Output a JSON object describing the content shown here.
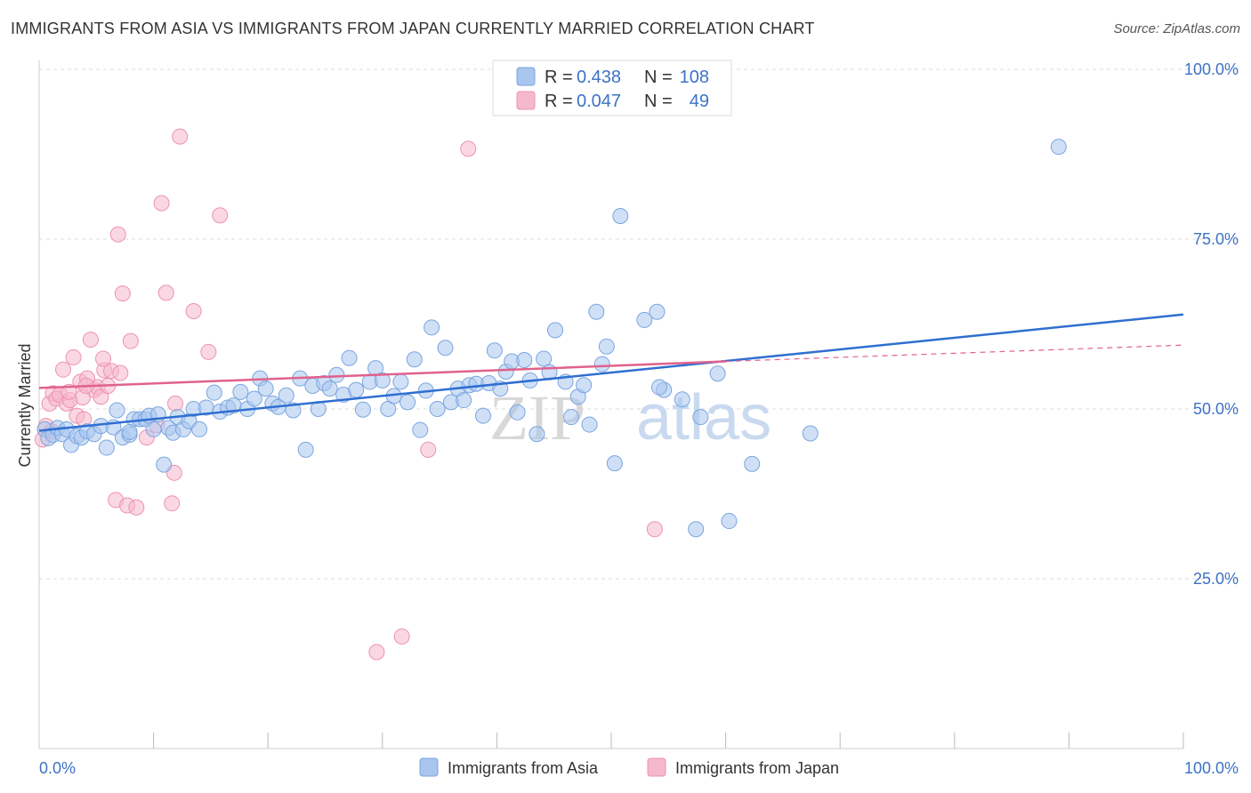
{
  "title": "IMMIGRANTS FROM ASIA VS IMMIGRANTS FROM JAPAN CURRENTLY MARRIED CORRELATION CHART",
  "source": "Source: ZipAtlas.com",
  "watermark": {
    "zip": "ZIP",
    "atlas": "atlas"
  },
  "colors": {
    "asia_fill": "#a8c6ee",
    "asia_stroke": "#7ba5e0",
    "asia_line": "#2f6fd1",
    "japan_fill": "#f6b8cc",
    "japan_stroke": "#ee92b0",
    "japan_line": "#e0628c",
    "grid": "#dddddd",
    "tick": "#3d72c4"
  },
  "legend": {
    "asia": {
      "r_label": "R =",
      "r_value": "0.438",
      "n_label": "N =",
      "n_value": "108"
    },
    "japan": {
      "r_label": "R =",
      "r_value": "0.047",
      "n_label": "N =",
      "n_value": "49"
    }
  },
  "chart_data": {
    "type": "scatter",
    "title": "IMMIGRANTS FROM ASIA VS IMMIGRANTS FROM JAPAN CURRENTLY MARRIED CORRELATION CHART",
    "xlabel": "",
    "ylabel": "Currently Married",
    "xlim": [
      0,
      100
    ],
    "ylim": [
      0,
      100
    ],
    "x_tick_labels": [
      "0.0%",
      "100.0%"
    ],
    "y_ticks": [
      {
        "value": 100,
        "label": "100.0%"
      },
      {
        "value": 75,
        "label": "75.0%"
      },
      {
        "value": 50,
        "label": "50.0%"
      },
      {
        "value": 25,
        "label": "25.0%"
      }
    ],
    "grid": "horizontal dashed",
    "legend_position": "top-center",
    "series": [
      {
        "name": "Immigrants from Asia",
        "trend": {
          "x0": 0,
          "y0": 46.8,
          "x1": 100,
          "y1": 63.9
        },
        "points": [
          [
            0.5,
            47
          ],
          [
            0.8,
            45.7
          ],
          [
            1.2,
            46.2
          ],
          [
            1.6,
            47.2
          ],
          [
            2,
            46.3
          ],
          [
            2.4,
            47
          ],
          [
            2.8,
            44.7
          ],
          [
            3.3,
            46
          ],
          [
            3.7,
            45.8
          ],
          [
            4.2,
            46.7
          ],
          [
            4.8,
            46.3
          ],
          [
            5.4,
            47.5
          ],
          [
            5.9,
            44.3
          ],
          [
            6.5,
            47.3
          ],
          [
            6.8,
            49.8
          ],
          [
            7.3,
            45.8
          ],
          [
            7.9,
            46.2
          ],
          [
            8.3,
            48.5
          ],
          [
            8.8,
            48.5
          ],
          [
            9.3,
            48.5
          ],
          [
            9.6,
            49
          ],
          [
            10,
            47
          ],
          [
            10.4,
            49.2
          ],
          [
            10.9,
            41.8
          ],
          [
            11.3,
            47.2
          ],
          [
            11.7,
            46.5
          ],
          [
            12.1,
            48.8
          ],
          [
            12.6,
            47
          ],
          [
            13.1,
            48.2
          ],
          [
            13.5,
            50
          ],
          [
            14,
            47
          ],
          [
            14.6,
            50.2
          ],
          [
            15.3,
            52.4
          ],
          [
            15.8,
            49.6
          ],
          [
            16.5,
            50.2
          ],
          [
            17,
            50.5
          ],
          [
            17.6,
            52.5
          ],
          [
            18.2,
            50
          ],
          [
            18.8,
            51.5
          ],
          [
            19.3,
            54.5
          ],
          [
            19.8,
            53
          ],
          [
            20.4,
            50.8
          ],
          [
            20.9,
            50.3
          ],
          [
            21.6,
            52
          ],
          [
            22.2,
            49.8
          ],
          [
            22.8,
            54.5
          ],
          [
            23.3,
            44
          ],
          [
            23.9,
            53.4
          ],
          [
            24.4,
            50
          ],
          [
            24.9,
            53.8
          ],
          [
            25.4,
            53
          ],
          [
            26,
            55
          ],
          [
            26.6,
            52.1
          ],
          [
            27.1,
            57.5
          ],
          [
            27.7,
            52.8
          ],
          [
            28.3,
            49.9
          ],
          [
            28.9,
            54
          ],
          [
            29.4,
            56
          ],
          [
            30,
            54.2
          ],
          [
            30.5,
            50
          ],
          [
            31,
            51.9
          ],
          [
            31.6,
            54
          ],
          [
            32.2,
            51
          ],
          [
            32.8,
            57.3
          ],
          [
            33.3,
            46.9
          ],
          [
            33.8,
            52.7
          ],
          [
            34.3,
            62
          ],
          [
            34.8,
            50
          ],
          [
            35.5,
            59
          ],
          [
            36,
            51
          ],
          [
            36.6,
            53
          ],
          [
            37.1,
            51.3
          ],
          [
            37.6,
            53.5
          ],
          [
            38.2,
            53.7
          ],
          [
            38.8,
            49
          ],
          [
            39.3,
            53.8
          ],
          [
            39.8,
            58.6
          ],
          [
            40.3,
            53
          ],
          [
            40.8,
            55.5
          ],
          [
            41.3,
            57
          ],
          [
            41.8,
            49.5
          ],
          [
            42.4,
            57.2
          ],
          [
            42.9,
            54.2
          ],
          [
            43.5,
            46.3
          ],
          [
            44.1,
            57.4
          ],
          [
            44.6,
            55.4
          ],
          [
            45.1,
            61.6
          ],
          [
            46,
            54
          ],
          [
            46.5,
            48.8
          ],
          [
            47.1,
            51.8
          ],
          [
            47.6,
            53.5
          ],
          [
            48.1,
            47.7
          ],
          [
            48.7,
            64.3
          ],
          [
            49.2,
            56.6
          ],
          [
            49.6,
            59.2
          ],
          [
            50.3,
            42
          ],
          [
            50.8,
            78.4
          ],
          [
            52.9,
            63.1
          ],
          [
            54,
            64.3
          ],
          [
            54.6,
            52.8
          ],
          [
            54.2,
            53.2
          ],
          [
            56.2,
            51.4
          ],
          [
            57.4,
            32.3
          ],
          [
            57.8,
            48.8
          ],
          [
            59.3,
            55.2
          ],
          [
            60.3,
            33.5
          ],
          [
            62.3,
            41.9
          ],
          [
            67.4,
            46.4
          ],
          [
            89.1,
            88.6
          ],
          [
            7.9,
            46.6
          ]
        ]
      },
      {
        "name": "Immigrants from Japan",
        "trend": {
          "x0": 0,
          "y0": 53.1,
          "x1": 60,
          "y1": 57.0,
          "dashed_to": {
            "x": 100,
            "y": 59.4
          }
        },
        "points": [
          [
            0.3,
            45.5
          ],
          [
            0.6,
            47.5
          ],
          [
            0.9,
            50.8
          ],
          [
            1.2,
            52.3
          ],
          [
            1.5,
            51.5
          ],
          [
            1.8,
            52.1
          ],
          [
            2.1,
            55.8
          ],
          [
            2.4,
            50.8
          ],
          [
            2.7,
            51.3
          ],
          [
            3,
            57.6
          ],
          [
            3.3,
            49
          ],
          [
            3.6,
            54
          ],
          [
            3.9,
            48.5
          ],
          [
            4.2,
            54.5
          ],
          [
            4.5,
            60.2
          ],
          [
            4.8,
            52.8
          ],
          [
            5.1,
            53.2
          ],
          [
            5.4,
            51.8
          ],
          [
            5.7,
            55.7
          ],
          [
            6,
            53.4
          ],
          [
            6.3,
            55.6
          ],
          [
            6.7,
            36.6
          ],
          [
            6.9,
            75.7
          ],
          [
            7.1,
            55.3
          ],
          [
            7.3,
            67
          ],
          [
            7.7,
            35.8
          ],
          [
            8,
            60
          ],
          [
            8.5,
            35.5
          ],
          [
            9.4,
            45.8
          ],
          [
            10.3,
            47.6
          ],
          [
            10.7,
            80.3
          ],
          [
            11.1,
            67.1
          ],
          [
            11.6,
            36.1
          ],
          [
            11.8,
            40.6
          ],
          [
            11.9,
            50.8
          ],
          [
            12.3,
            90.1
          ],
          [
            13.5,
            64.4
          ],
          [
            14.8,
            58.4
          ],
          [
            15.8,
            78.5
          ],
          [
            29.5,
            14.2
          ],
          [
            31.7,
            16.5
          ],
          [
            34,
            44
          ],
          [
            37.5,
            88.3
          ],
          [
            53.8,
            32.3
          ],
          [
            1.1,
            46.7
          ],
          [
            2.6,
            52.5
          ],
          [
            3.8,
            51.7
          ],
          [
            4.1,
            53.4
          ],
          [
            5.6,
            57.4
          ]
        ]
      }
    ]
  },
  "bottom_legend": {
    "asia": "Immigrants from Asia",
    "japan": "Immigrants from Japan"
  }
}
